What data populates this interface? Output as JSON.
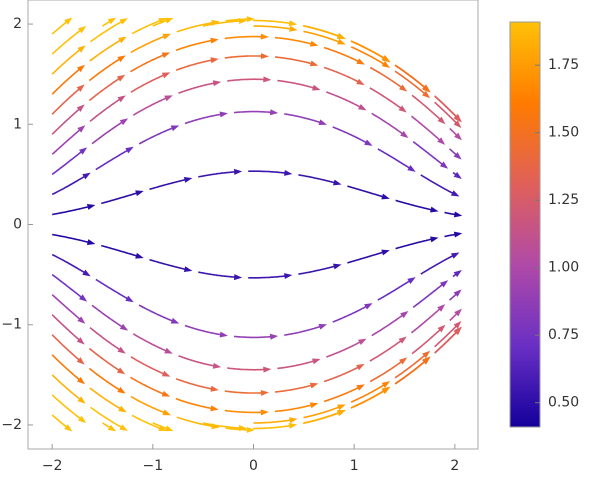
{
  "chart_data": {
    "type": "stream",
    "xlim": [
      -2.24,
      2.23
    ],
    "ylim": [
      -2.24,
      2.24
    ],
    "xticks": [
      {
        "value": -2,
        "label": "−2"
      },
      {
        "value": -1,
        "label": "−1"
      },
      0,
      1,
      2
    ],
    "yticks": [
      {
        "value": -2,
        "label": "−2"
      },
      {
        "value": -1,
        "label": "−1"
      },
      0,
      1,
      2
    ],
    "colorbar": {
      "lim": [
        0.41,
        1.91
      ],
      "ticks": [
        {
          "value": 0.5,
          "label": "0.50"
        },
        0.75,
        {
          "value": 1,
          "label": "1.00"
        },
        1.25,
        {
          "value": 1.5,
          "label": "1.50"
        },
        1.75
      ],
      "colormap": [
        "#14009c",
        "#6a2fc4",
        "#b04aa8",
        "#e0605a",
        "#ff7b00",
        "#ffc107"
      ]
    }
  }
}
